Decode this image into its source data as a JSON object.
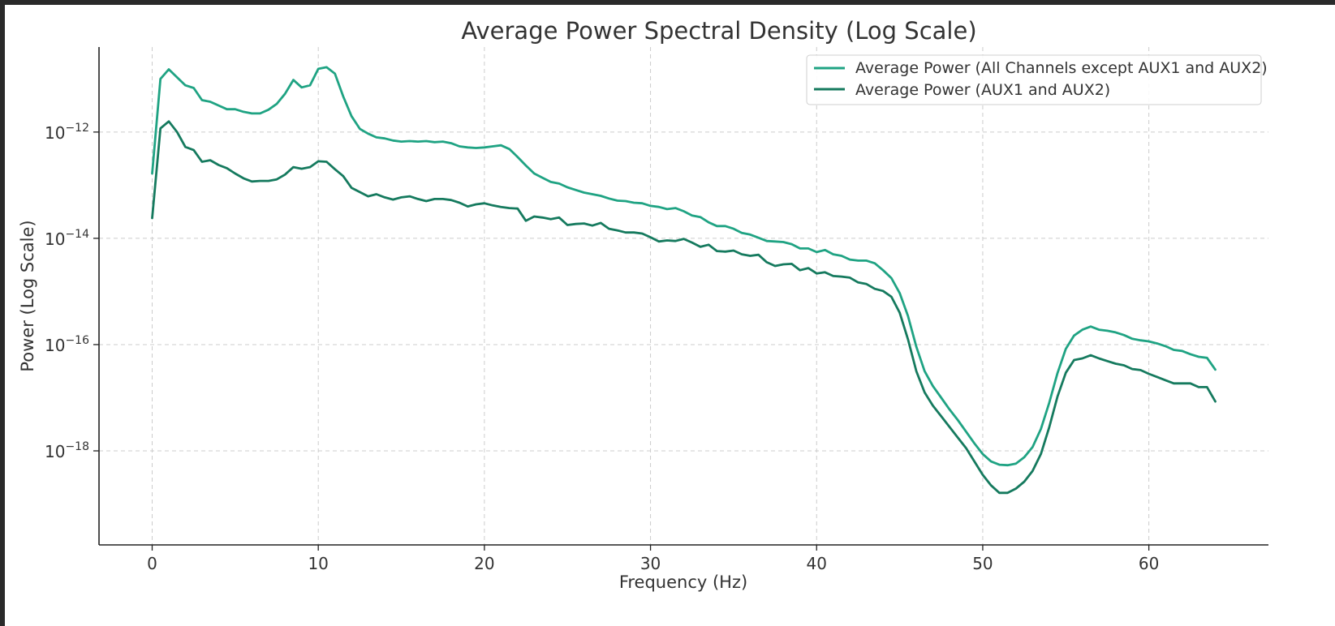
{
  "chart_data": {
    "type": "line",
    "title": "Average Power Spectral Density (Log Scale)",
    "xlabel": "Frequency (Hz)",
    "ylabel": "Power (Log Scale)",
    "xlim": [
      -3.2,
      67.2
    ],
    "ylim_log10": [
      -19.77,
      -10.4
    ],
    "y_scale": "log",
    "x_ticks": [
      0,
      10,
      20,
      30,
      40,
      50,
      60
    ],
    "y_ticks": [
      {
        "exp": -12,
        "label": "10",
        "sup": "−12"
      },
      {
        "exp": -14,
        "label": "10",
        "sup": "−14"
      },
      {
        "exp": -16,
        "label": "10",
        "sup": "−16"
      },
      {
        "exp": -18,
        "label": "10",
        "sup": "−18"
      }
    ],
    "grid": true,
    "legend_position": "top-right",
    "series": [
      {
        "name": "Average Power (All Channels except AUX1 and AUX2)",
        "color": "#1fa383",
        "points": [
          [
            0,
            -12.78
          ],
          [
            0.5,
            -11.0
          ],
          [
            1,
            -10.82
          ],
          [
            1.5,
            -10.97
          ],
          [
            2,
            -11.12
          ],
          [
            2.5,
            -11.17
          ],
          [
            3,
            -11.4
          ],
          [
            3.5,
            -11.43
          ],
          [
            4,
            -11.5
          ],
          [
            4.5,
            -11.57
          ],
          [
            5,
            -11.57
          ],
          [
            5.5,
            -11.62
          ],
          [
            6,
            -11.65
          ],
          [
            6.5,
            -11.65
          ],
          [
            7,
            -11.58
          ],
          [
            7.5,
            -11.47
          ],
          [
            8,
            -11.28
          ],
          [
            8.5,
            -11.02
          ],
          [
            9,
            -11.16
          ],
          [
            9.5,
            -11.12
          ],
          [
            10,
            -10.81
          ],
          [
            10.5,
            -10.78
          ],
          [
            11,
            -10.9
          ],
          [
            11.5,
            -11.33
          ],
          [
            12,
            -11.7
          ],
          [
            12.5,
            -11.94
          ],
          [
            13,
            -12.03
          ],
          [
            13.5,
            -12.1
          ],
          [
            14,
            -12.12
          ],
          [
            14.5,
            -12.16
          ],
          [
            15,
            -12.18
          ],
          [
            15.5,
            -12.17
          ],
          [
            16,
            -12.18
          ],
          [
            16.5,
            -12.17
          ],
          [
            17,
            -12.19
          ],
          [
            17.5,
            -12.18
          ],
          [
            18,
            -12.21
          ],
          [
            18.5,
            -12.27
          ],
          [
            19,
            -12.29
          ],
          [
            19.5,
            -12.3
          ],
          [
            20,
            -12.29
          ],
          [
            20.5,
            -12.27
          ],
          [
            21,
            -12.25
          ],
          [
            21.5,
            -12.32
          ],
          [
            22,
            -12.47
          ],
          [
            22.5,
            -12.63
          ],
          [
            23,
            -12.78
          ],
          [
            23.5,
            -12.86
          ],
          [
            24,
            -12.94
          ],
          [
            24.5,
            -12.97
          ],
          [
            25,
            -13.04
          ],
          [
            25.5,
            -13.09
          ],
          [
            26,
            -13.14
          ],
          [
            26.5,
            -13.17
          ],
          [
            27,
            -13.2
          ],
          [
            27.5,
            -13.25
          ],
          [
            28,
            -13.29
          ],
          [
            28.5,
            -13.3
          ],
          [
            29,
            -13.33
          ],
          [
            29.5,
            -13.34
          ],
          [
            30,
            -13.39
          ],
          [
            30.5,
            -13.41
          ],
          [
            31,
            -13.45
          ],
          [
            31.5,
            -13.43
          ],
          [
            32,
            -13.49
          ],
          [
            32.5,
            -13.57
          ],
          [
            33,
            -13.6
          ],
          [
            33.5,
            -13.7
          ],
          [
            34,
            -13.77
          ],
          [
            34.5,
            -13.77
          ],
          [
            35,
            -13.82
          ],
          [
            35.5,
            -13.9
          ],
          [
            36,
            -13.93
          ],
          [
            36.5,
            -13.99
          ],
          [
            37,
            -14.05
          ],
          [
            37.5,
            -14.06
          ],
          [
            38,
            -14.07
          ],
          [
            38.5,
            -14.11
          ],
          [
            39,
            -14.19
          ],
          [
            39.5,
            -14.19
          ],
          [
            40,
            -14.26
          ],
          [
            40.5,
            -14.22
          ],
          [
            41,
            -14.3
          ],
          [
            41.5,
            -14.33
          ],
          [
            42,
            -14.4
          ],
          [
            42.5,
            -14.42
          ],
          [
            43,
            -14.42
          ],
          [
            43.5,
            -14.47
          ],
          [
            44,
            -14.6
          ],
          [
            44.5,
            -14.75
          ],
          [
            45,
            -15.03
          ],
          [
            45.5,
            -15.46
          ],
          [
            46,
            -16.04
          ],
          [
            46.5,
            -16.5
          ],
          [
            47,
            -16.78
          ],
          [
            47.5,
            -17.0
          ],
          [
            48,
            -17.22
          ],
          [
            48.5,
            -17.42
          ],
          [
            49,
            -17.64
          ],
          [
            49.5,
            -17.86
          ],
          [
            50,
            -18.06
          ],
          [
            50.5,
            -18.2
          ],
          [
            51,
            -18.26
          ],
          [
            51.5,
            -18.27
          ],
          [
            52,
            -18.24
          ],
          [
            52.5,
            -18.12
          ],
          [
            53,
            -17.93
          ],
          [
            53.5,
            -17.59
          ],
          [
            54,
            -17.1
          ],
          [
            54.5,
            -16.54
          ],
          [
            55,
            -16.08
          ],
          [
            55.5,
            -15.83
          ],
          [
            56,
            -15.72
          ],
          [
            56.5,
            -15.66
          ],
          [
            57,
            -15.72
          ],
          [
            57.5,
            -15.74
          ],
          [
            58,
            -15.77
          ],
          [
            58.5,
            -15.82
          ],
          [
            59,
            -15.89
          ],
          [
            59.5,
            -15.92
          ],
          [
            60,
            -15.94
          ],
          [
            60.5,
            -15.98
          ],
          [
            61,
            -16.03
          ],
          [
            61.5,
            -16.1
          ],
          [
            62,
            -16.12
          ],
          [
            62.5,
            -16.18
          ],
          [
            63,
            -16.23
          ],
          [
            63.5,
            -16.25
          ],
          [
            64,
            -16.47
          ]
        ]
      },
      {
        "name": "Average Power (AUX1 and AUX2)",
        "color": "#157a5e",
        "points": [
          [
            0,
            -13.62
          ],
          [
            0.5,
            -11.93
          ],
          [
            1,
            -11.8
          ],
          [
            1.5,
            -12.0
          ],
          [
            2,
            -12.28
          ],
          [
            2.5,
            -12.34
          ],
          [
            3,
            -12.56
          ],
          [
            3.5,
            -12.53
          ],
          [
            4,
            -12.62
          ],
          [
            4.5,
            -12.68
          ],
          [
            5,
            -12.78
          ],
          [
            5.5,
            -12.87
          ],
          [
            6,
            -12.93
          ],
          [
            6.5,
            -12.92
          ],
          [
            7,
            -12.92
          ],
          [
            7.5,
            -12.89
          ],
          [
            8,
            -12.8
          ],
          [
            8.5,
            -12.66
          ],
          [
            9,
            -12.69
          ],
          [
            9.5,
            -12.66
          ],
          [
            10,
            -12.55
          ],
          [
            10.5,
            -12.56
          ],
          [
            11,
            -12.7
          ],
          [
            11.5,
            -12.83
          ],
          [
            12,
            -13.05
          ],
          [
            12.5,
            -13.13
          ],
          [
            13,
            -13.21
          ],
          [
            13.5,
            -13.17
          ],
          [
            14,
            -13.23
          ],
          [
            14.5,
            -13.27
          ],
          [
            15,
            -13.23
          ],
          [
            15.5,
            -13.21
          ],
          [
            16,
            -13.26
          ],
          [
            16.5,
            -13.3
          ],
          [
            17,
            -13.26
          ],
          [
            17.5,
            -13.26
          ],
          [
            18,
            -13.28
          ],
          [
            18.5,
            -13.33
          ],
          [
            19,
            -13.4
          ],
          [
            19.5,
            -13.36
          ],
          [
            20,
            -13.34
          ],
          [
            20.5,
            -13.38
          ],
          [
            21,
            -13.41
          ],
          [
            21.5,
            -13.43
          ],
          [
            22,
            -13.44
          ],
          [
            22.5,
            -13.67
          ],
          [
            23,
            -13.59
          ],
          [
            23.5,
            -13.61
          ],
          [
            24,
            -13.64
          ],
          [
            24.5,
            -13.61
          ],
          [
            25,
            -13.75
          ],
          [
            25.5,
            -13.73
          ],
          [
            26,
            -13.72
          ],
          [
            26.5,
            -13.76
          ],
          [
            27,
            -13.71
          ],
          [
            27.5,
            -13.82
          ],
          [
            28,
            -13.85
          ],
          [
            28.5,
            -13.89
          ],
          [
            29,
            -13.89
          ],
          [
            29.5,
            -13.91
          ],
          [
            30,
            -13.98
          ],
          [
            30.5,
            -14.06
          ],
          [
            31,
            -14.04
          ],
          [
            31.5,
            -14.05
          ],
          [
            32,
            -14.01
          ],
          [
            32.5,
            -14.08
          ],
          [
            33,
            -14.16
          ],
          [
            33.5,
            -14.12
          ],
          [
            34,
            -14.24
          ],
          [
            34.5,
            -14.25
          ],
          [
            35,
            -14.23
          ],
          [
            35.5,
            -14.3
          ],
          [
            36,
            -14.33
          ],
          [
            36.5,
            -14.31
          ],
          [
            37,
            -14.45
          ],
          [
            37.5,
            -14.52
          ],
          [
            38,
            -14.49
          ],
          [
            38.5,
            -14.48
          ],
          [
            39,
            -14.6
          ],
          [
            39.5,
            -14.56
          ],
          [
            40,
            -14.66
          ],
          [
            40.5,
            -14.64
          ],
          [
            41,
            -14.71
          ],
          [
            41.5,
            -14.72
          ],
          [
            42,
            -14.74
          ],
          [
            42.5,
            -14.83
          ],
          [
            43,
            -14.86
          ],
          [
            43.5,
            -14.95
          ],
          [
            44,
            -14.99
          ],
          [
            44.5,
            -15.1
          ],
          [
            45,
            -15.4
          ],
          [
            45.5,
            -15.9
          ],
          [
            46,
            -16.5
          ],
          [
            46.5,
            -16.9
          ],
          [
            47,
            -17.15
          ],
          [
            47.5,
            -17.35
          ],
          [
            48,
            -17.55
          ],
          [
            48.5,
            -17.75
          ],
          [
            49,
            -17.95
          ],
          [
            49.5,
            -18.2
          ],
          [
            50,
            -18.45
          ],
          [
            50.5,
            -18.65
          ],
          [
            51,
            -18.79
          ],
          [
            51.5,
            -18.79
          ],
          [
            52,
            -18.71
          ],
          [
            52.5,
            -18.58
          ],
          [
            53,
            -18.38
          ],
          [
            53.5,
            -18.06
          ],
          [
            54,
            -17.56
          ],
          [
            54.5,
            -16.98
          ],
          [
            55,
            -16.53
          ],
          [
            55.5,
            -16.29
          ],
          [
            56,
            -16.26
          ],
          [
            56.5,
            -16.2
          ],
          [
            57,
            -16.26
          ],
          [
            57.5,
            -16.31
          ],
          [
            58,
            -16.36
          ],
          [
            58.5,
            -16.39
          ],
          [
            59,
            -16.46
          ],
          [
            59.5,
            -16.48
          ],
          [
            60,
            -16.55
          ],
          [
            60.5,
            -16.61
          ],
          [
            61,
            -16.67
          ],
          [
            61.5,
            -16.73
          ],
          [
            62,
            -16.73
          ],
          [
            62.5,
            -16.73
          ],
          [
            63,
            -16.8
          ],
          [
            63.5,
            -16.8
          ],
          [
            64,
            -17.07
          ]
        ]
      }
    ]
  }
}
